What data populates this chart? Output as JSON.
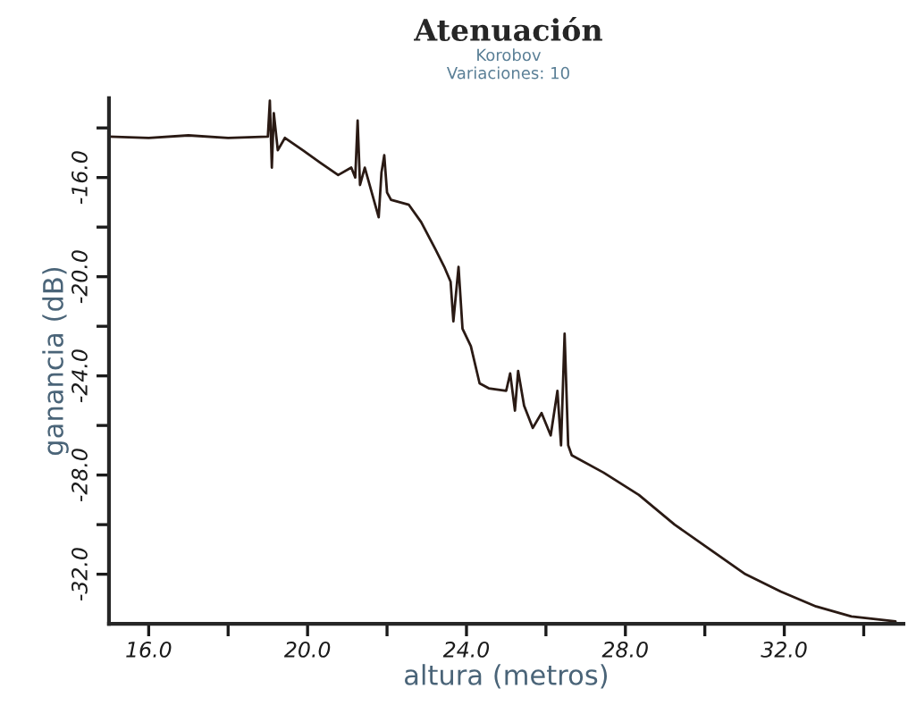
{
  "chart_data": {
    "type": "line",
    "title": "Atenuación",
    "subtitle": "Korobov",
    "annotations": [
      "Variaciones: 10"
    ],
    "xlabel": "altura (metros)",
    "ylabel": "ganancia (dB)",
    "series": [
      {
        "color": "#2a1a14",
        "x": [
          15.0,
          16.0,
          17.0,
          18.0,
          19.0,
          19.05,
          19.1,
          19.15,
          19.25,
          19.43,
          19.88,
          20.32,
          20.77,
          21.1,
          21.2,
          21.26,
          21.32,
          21.44,
          21.79,
          21.86,
          21.93,
          22.0,
          22.1,
          22.55,
          22.86,
          23.22,
          23.44,
          23.6,
          23.67,
          23.8,
          23.9,
          24.11,
          24.33,
          24.56,
          25.0,
          25.1,
          25.22,
          25.3,
          25.45,
          25.67,
          25.89,
          26.12,
          26.29,
          26.38,
          26.47,
          26.56,
          26.65,
          27.45,
          28.34,
          29.24,
          30.13,
          31.02,
          31.91,
          32.8,
          33.69,
          34.8
        ],
        "values": [
          -14.35,
          -14.4,
          -14.3,
          -14.4,
          -14.35,
          -12.9,
          -15.6,
          -13.4,
          -14.9,
          -14.4,
          -14.9,
          -15.4,
          -15.9,
          -15.6,
          -16.0,
          -13.7,
          -16.3,
          -15.6,
          -17.6,
          -15.8,
          -15.1,
          -16.6,
          -16.9,
          -17.1,
          -17.8,
          -18.9,
          -19.6,
          -20.2,
          -21.8,
          -19.6,
          -22.1,
          -22.8,
          -24.3,
          -24.5,
          -24.6,
          -23.9,
          -25.4,
          -23.8,
          -25.2,
          -26.1,
          -25.5,
          -26.4,
          -24.6,
          -26.8,
          -22.3,
          -26.8,
          -27.2,
          -27.9,
          -28.8,
          -30.0,
          -31.0,
          -32.0,
          -32.7,
          -33.3,
          -33.7,
          -33.9
        ]
      }
    ],
    "xlim": [
      15.0,
      35.0
    ],
    "xticks": [
      {
        "value": 16,
        "label": "16.0"
      },
      {
        "value": 18,
        "label": null
      },
      {
        "value": 20,
        "label": "20.0"
      },
      {
        "value": 22,
        "label": null
      },
      {
        "value": 24,
        "label": "24.0"
      },
      {
        "value": 26,
        "label": null
      },
      {
        "value": 28,
        "label": "28.0"
      },
      {
        "value": 30,
        "label": null
      },
      {
        "value": 32,
        "label": "32.0"
      },
      {
        "value": 34,
        "label": null
      }
    ],
    "ylim": [
      -34.0,
      -12.8
    ],
    "yticks": [
      {
        "value": -14,
        "label": null
      },
      {
        "value": -16,
        "label": "-16.0"
      },
      {
        "value": -18,
        "label": null
      },
      {
        "value": -20,
        "label": "-20.0"
      },
      {
        "value": -22,
        "label": null
      },
      {
        "value": -24,
        "label": "-24.0"
      },
      {
        "value": -26,
        "label": null
      },
      {
        "value": -28,
        "label": "-28.0"
      },
      {
        "value": -30,
        "label": null
      },
      {
        "value": -32,
        "label": "-32.0"
      }
    ],
    "marker": "none",
    "line_style": "solid"
  }
}
